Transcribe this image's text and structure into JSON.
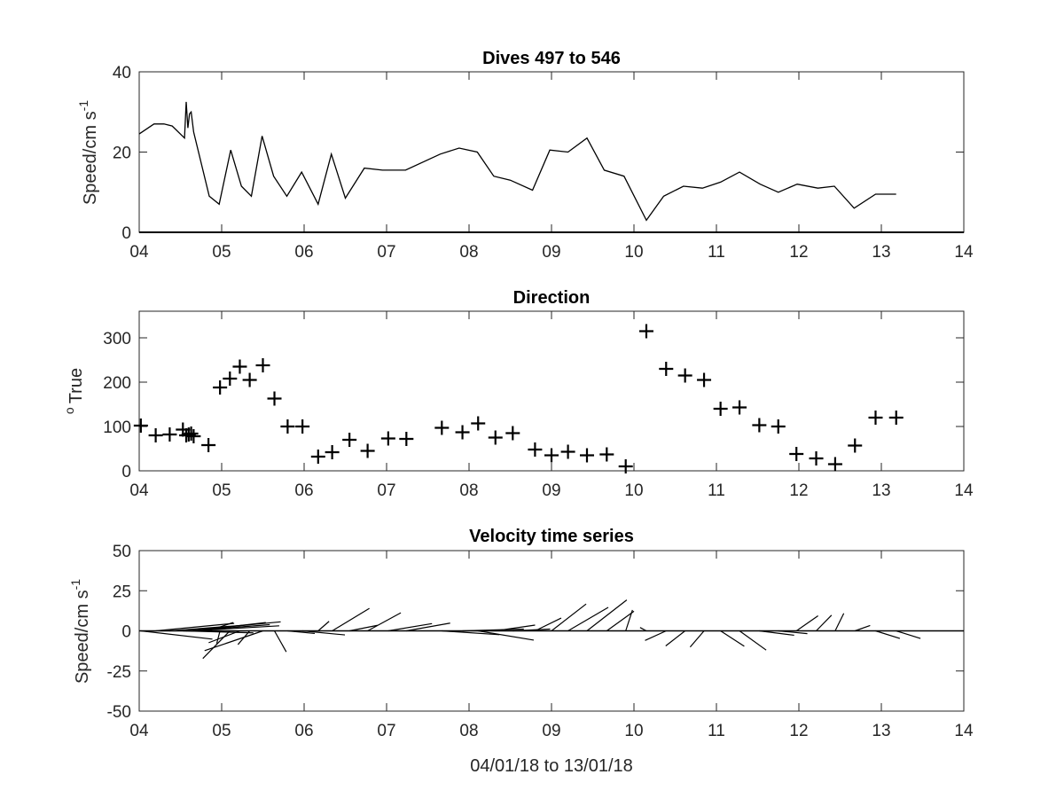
{
  "colors": {
    "axes": "#262626",
    "data": "#000000",
    "background": "#ffffff"
  },
  "figure": {
    "xlabel": "04/01/18 to 13/01/18"
  },
  "chart_data": [
    {
      "type": "line",
      "title": "Dives 497 to 546",
      "ylabel_main": "Speed/cm s",
      "ylabel_sup": "-1",
      "xlim": [
        4,
        14
      ],
      "ylim": [
        0,
        40
      ],
      "xticks": [
        4,
        5,
        6,
        7,
        8,
        9,
        10,
        11,
        12,
        13,
        14
      ],
      "xticklabels": [
        "04",
        "05",
        "06",
        "07",
        "08",
        "09",
        "10",
        "11",
        "12",
        "13",
        "14"
      ],
      "yticks": [
        0,
        20,
        40
      ],
      "yticklabels": [
        "0",
        "20",
        "40"
      ],
      "series": [
        {
          "x": [
            4.0,
            4.18,
            4.3,
            4.4,
            4.55,
            4.57,
            4.59,
            4.61,
            4.63,
            4.66,
            4.85,
            4.97,
            5.11,
            5.24,
            5.36,
            5.49,
            5.63,
            5.79,
            5.97,
            6.17,
            6.33,
            6.5,
            6.73,
            6.95,
            7.23,
            7.65,
            7.88,
            8.1,
            8.3,
            8.5,
            8.77,
            8.98,
            9.2,
            9.43,
            9.64,
            9.88,
            10.15,
            10.36,
            10.6,
            10.83,
            11.05,
            11.28,
            11.53,
            11.75,
            11.98,
            12.23,
            12.43,
            12.67,
            12.93,
            13.18
          ],
          "y": [
            24.5,
            27,
            27,
            26.5,
            23.5,
            32.5,
            26,
            29.5,
            30,
            25,
            9,
            7,
            20.5,
            11.5,
            9,
            24,
            14,
            9,
            15,
            7,
            19.5,
            8.5,
            16,
            15.5,
            15.5,
            19.5,
            21,
            20,
            14,
            13,
            10.5,
            20.5,
            20,
            23.5,
            15.5,
            14,
            3,
            9,
            11.5,
            11,
            12.5,
            15,
            12,
            10,
            12,
            11,
            11.5,
            6,
            9.5,
            9.5
          ]
        }
      ]
    },
    {
      "type": "scatter",
      "title": "Direction",
      "ylabel_main": "True",
      "ylabel_sup": "o",
      "xlim": [
        4,
        14
      ],
      "ylim": [
        0,
        360
      ],
      "marker": "+",
      "xticks": [
        4,
        5,
        6,
        7,
        8,
        9,
        10,
        11,
        12,
        13,
        14
      ],
      "xticklabels": [
        "04",
        "05",
        "06",
        "07",
        "08",
        "09",
        "10",
        "11",
        "12",
        "13",
        "14"
      ],
      "yticks": [
        0,
        100,
        200,
        300
      ],
      "yticklabels": [
        "0",
        "100",
        "200",
        "300"
      ],
      "series": [
        {
          "x": [
            4.02,
            4.2,
            4.37,
            4.53,
            4.57,
            4.6,
            4.63,
            4.66,
            4.84,
            4.98,
            5.1,
            5.22,
            5.34,
            5.5,
            5.64,
            5.8,
            5.98,
            6.17,
            6.34,
            6.55,
            6.77,
            7.02,
            7.24,
            7.67,
            7.92,
            8.11,
            8.32,
            8.53,
            8.8,
            9.0,
            9.2,
            9.43,
            9.67,
            9.9,
            10.15,
            10.39,
            10.62,
            10.85,
            11.05,
            11.28,
            11.52,
            11.75,
            11.97,
            12.21,
            12.44,
            12.68,
            12.93,
            13.18
          ],
          "y": [
            102,
            80,
            82,
            93,
            80,
            82,
            84,
            78,
            58,
            188,
            208,
            235,
            205,
            238,
            163,
            100,
            100,
            32,
            42,
            70,
            45,
            73,
            72,
            97,
            87,
            107,
            75,
            85,
            48,
            35,
            43,
            35,
            37,
            10,
            315,
            230,
            215,
            205,
            140,
            143,
            103,
            100,
            38,
            28,
            15,
            57,
            120,
            120
          ]
        }
      ]
    },
    {
      "type": "quiver",
      "title": "Velocity time series",
      "ylabel_main": "Speed/cm s",
      "ylabel_sup": "-1",
      "xlim": [
        4,
        14
      ],
      "ylim": [
        -50,
        50
      ],
      "xticks": [
        4,
        5,
        6,
        7,
        8,
        9,
        10,
        11,
        12,
        13,
        14
      ],
      "xticklabels": [
        "04",
        "05",
        "06",
        "07",
        "08",
        "09",
        "10",
        "11",
        "12",
        "13",
        "14"
      ],
      "yticks": [
        -50,
        -25,
        0,
        25,
        50
      ],
      "yticklabels": [
        "-50",
        "-25",
        "0",
        "25",
        "50"
      ],
      "time_units_per_cm_s": 0.0358,
      "note_direction": "sticks drawn from each dive time on the zero line; direction in degrees True, speed in cm/s"
    }
  ]
}
